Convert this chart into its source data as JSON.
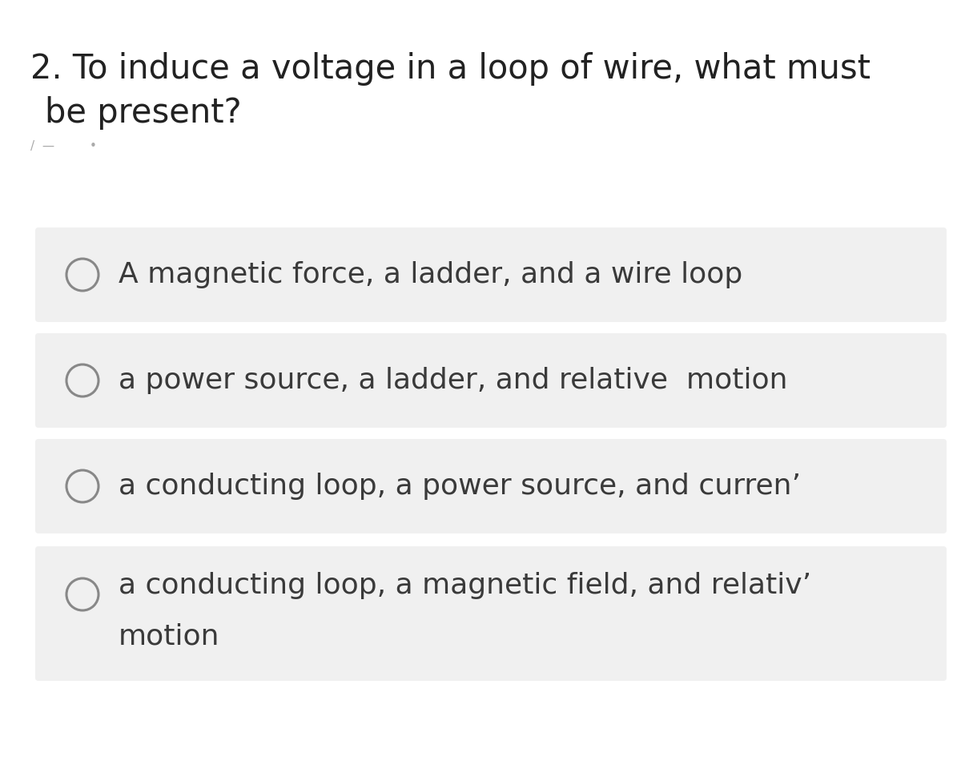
{
  "background_color": "#ffffff",
  "question_lines": [
    "2. To induce a voltage in a loop of wire, what must",
    "   be present?"
  ],
  "option_texts": [
    "A magnetic force, a ladder, and a wire loop",
    "a power source, a ladder, and relative  motion",
    "a conducting loop, a power source, and curren’",
    "a conducting loop, a magnetic field, and relativ’"
  ],
  "option_line2": [
    "",
    "",
    "",
    "motion"
  ],
  "option_bg_color": "#f0f0f0",
  "option_text_color": "#3a3a3a",
  "question_text_color": "#222222",
  "circle_edge_color": "#888888",
  "font_size_question": 30,
  "font_size_option": 26,
  "fig_width": 12.0,
  "fig_height": 9.75,
  "dpi": 100
}
